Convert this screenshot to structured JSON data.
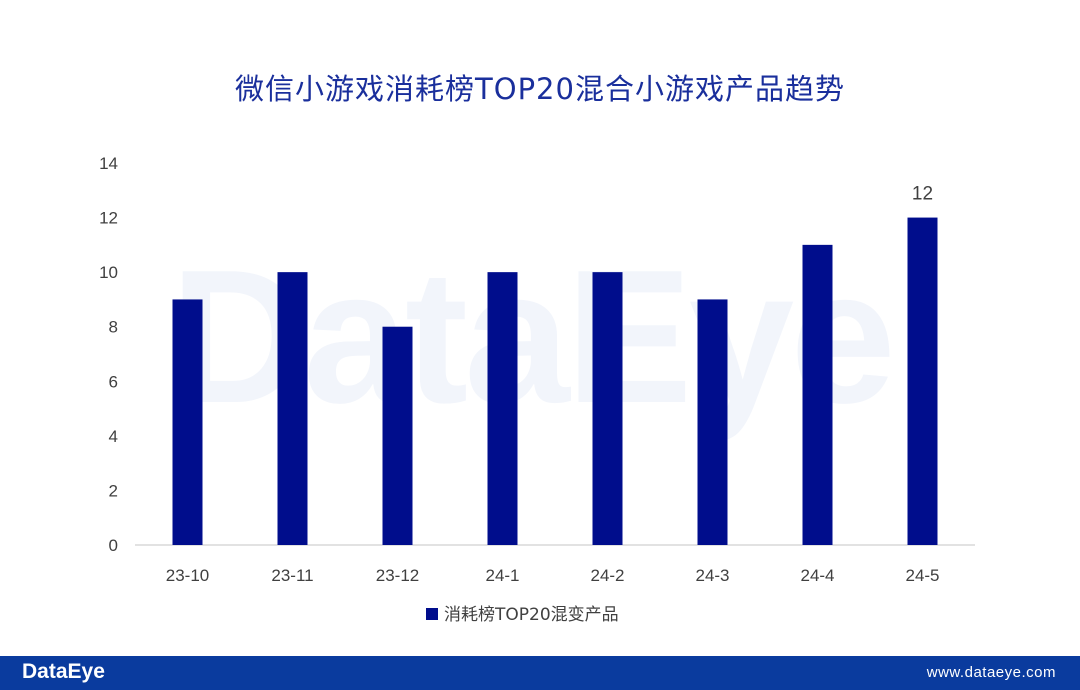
{
  "title": "微信小游戏消耗榜TOP20混合小游戏产品趋势",
  "watermark_text": "DataEye",
  "footer": {
    "logo": "DataEye",
    "url": "www.dataeye.com"
  },
  "colors": {
    "title": "#1a2f9c",
    "bar": "#000d8c",
    "footer_bg": "#0a3b9e"
  },
  "chart_data": {
    "type": "bar",
    "categories": [
      "23-10",
      "23-11",
      "23-12",
      "24-1",
      "24-2",
      "24-3",
      "24-4",
      "24-5"
    ],
    "series": [
      {
        "name": "消耗榜TOP20混变产品",
        "values": [
          9,
          10,
          8,
          10,
          10,
          9,
          11,
          12
        ]
      }
    ],
    "data_labels": [
      null,
      null,
      null,
      null,
      null,
      null,
      null,
      "12"
    ],
    "ylim": [
      0,
      14
    ],
    "yticks": [
      0,
      2,
      4,
      6,
      8,
      10,
      12,
      14
    ],
    "grid": false,
    "legend_position": "bottom"
  }
}
